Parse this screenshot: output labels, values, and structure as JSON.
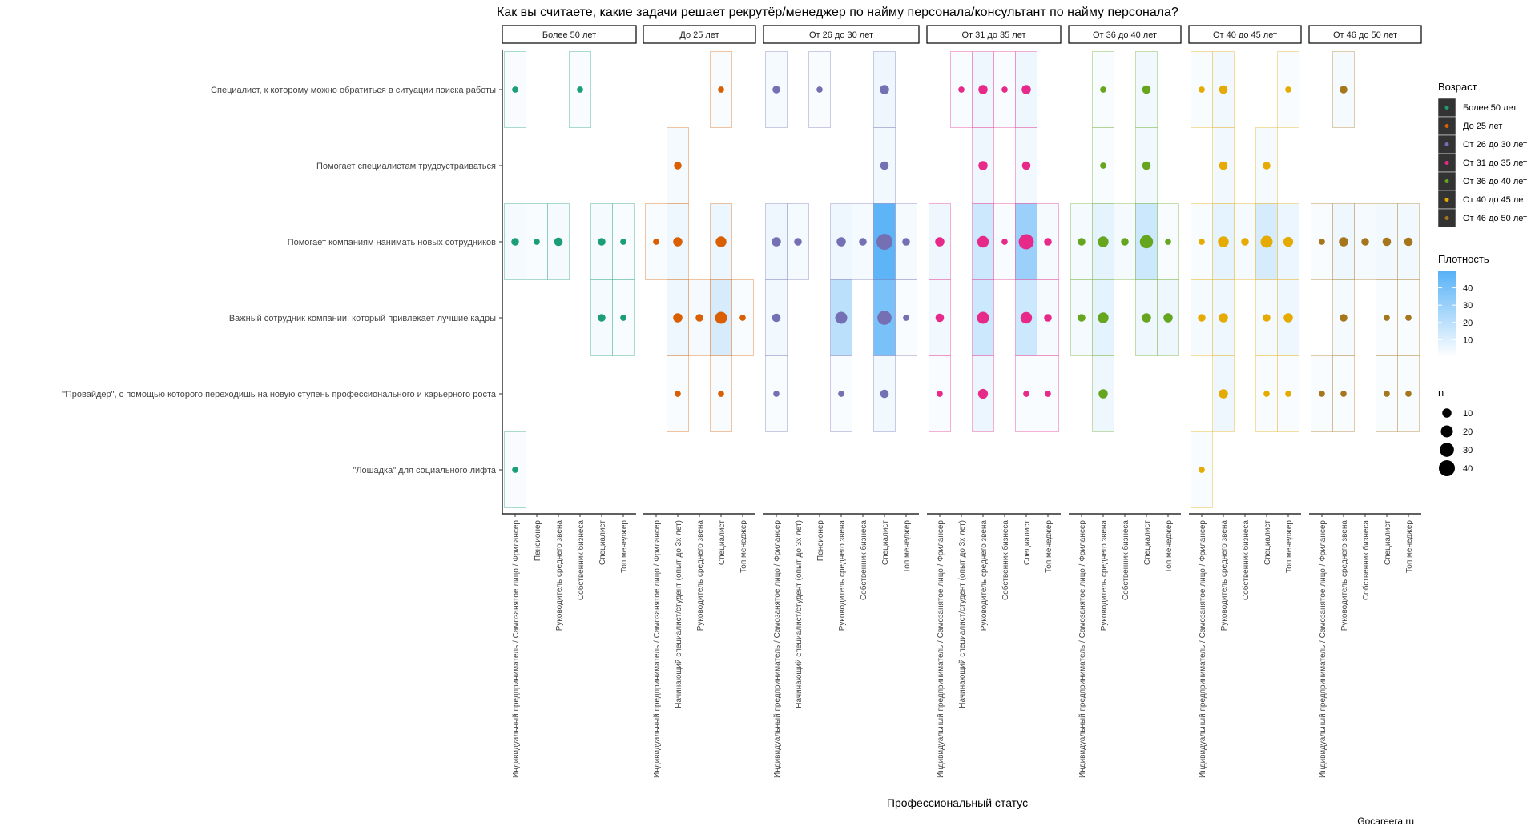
{
  "chart_data": {
    "type": "scatter",
    "title": "Как вы считаете, какие задачи решает рекрутёр/менеджер по найму персонала/консультант по найму персонала?",
    "xlabel": "Профессиональный статус",
    "ylabel": "",
    "caption": "Gocareera.ru",
    "rows": [
      "Специалист, к которому можно обратиться в ситуации поиска работы",
      "Помогает специалистам трудоустраиваться",
      "Помогает компаниям нанимать новых сотрудников",
      "Важный сотрудник компании, который привлекает лучшие кадры",
      "\"Провайдер\", с помощью которого переходишь на новую ступень профессионального и карьерного роста",
      "\"Лошадка\" для социального лифта"
    ],
    "legend_color": {
      "title": "Возраст",
      "items": [
        {
          "label": "Более 50 лет",
          "color": "#1b9e77"
        },
        {
          "label": "До 25 лет",
          "color": "#d95f02"
        },
        {
          "label": "От 26 до 30 лет",
          "color": "#7570b3"
        },
        {
          "label": "От 31 до 35 лет",
          "color": "#e7298a"
        },
        {
          "label": "От 36 до 40 лет",
          "color": "#66a61e"
        },
        {
          "label": "От 40 до 45 лет",
          "color": "#e6ab02"
        },
        {
          "label": "От 46 до 50 лет",
          "color": "#a6761d"
        }
      ]
    },
    "legend_fill": {
      "title": "Плотность",
      "ticks": [
        10,
        20,
        30,
        40
      ],
      "range": [
        0,
        50
      ],
      "low": "#ffffff",
      "high": "#56b1f7"
    },
    "legend_size": {
      "title": "n",
      "ticks": [
        10,
        20,
        30,
        40
      ]
    },
    "panels": [
      {
        "name": "Более 50 лет",
        "color": "#1b9e77",
        "categories": [
          "Индивидуальный предприниматель / Самозанятое лицо / Фрилансер",
          "Пенсионер",
          "Руководитель среднего звена",
          "Собственник бизнеса",
          "Специалист",
          "Топ менеджер"
        ],
        "points": [
          {
            "x": 0,
            "y": 0,
            "n": 3,
            "d": 2
          },
          {
            "x": 3,
            "y": 0,
            "n": 3,
            "d": 2
          },
          {
            "x": 0,
            "y": 2,
            "n": 6,
            "d": 3
          },
          {
            "x": 1,
            "y": 2,
            "n": 3,
            "d": 2
          },
          {
            "x": 2,
            "y": 2,
            "n": 8,
            "d": 3
          },
          {
            "x": 4,
            "y": 2,
            "n": 6,
            "d": 3
          },
          {
            "x": 5,
            "y": 2,
            "n": 3,
            "d": 2
          },
          {
            "x": 4,
            "y": 3,
            "n": 6,
            "d": 3
          },
          {
            "x": 5,
            "y": 3,
            "n": 3,
            "d": 2
          },
          {
            "x": 0,
            "y": 5,
            "n": 3,
            "d": 2
          }
        ]
      },
      {
        "name": "До 25 лет",
        "color": "#d95f02",
        "categories": [
          "Индивидуальный предприниматель / Самозанятое лицо / Фрилансер",
          "Начинающий специалист/студент (опыт до 3х лет)",
          "Руководитель среднего звена",
          "Специалист",
          "Топ менеджер"
        ],
        "points": [
          {
            "x": 3,
            "y": 0,
            "n": 3,
            "d": 2
          },
          {
            "x": 1,
            "y": 1,
            "n": 6,
            "d": 3
          },
          {
            "x": 0,
            "y": 2,
            "n": 3,
            "d": 2
          },
          {
            "x": 1,
            "y": 2,
            "n": 10,
            "d": 5
          },
          {
            "x": 3,
            "y": 2,
            "n": 15,
            "d": 6
          },
          {
            "x": 1,
            "y": 3,
            "n": 10,
            "d": 5
          },
          {
            "x": 2,
            "y": 3,
            "n": 6,
            "d": 3
          },
          {
            "x": 3,
            "y": 3,
            "n": 20,
            "d": 12
          },
          {
            "x": 4,
            "y": 3,
            "n": 3,
            "d": 2
          },
          {
            "x": 1,
            "y": 4,
            "n": 3,
            "d": 2
          },
          {
            "x": 3,
            "y": 4,
            "n": 3,
            "d": 2
          }
        ]
      },
      {
        "name": "От 26 до 30 лет",
        "color": "#7570b3",
        "categories": [
          "Индивидуальный предприниматель / Самозанятое лицо / Фрилансер",
          "Начинающий специалист/студент (опыт до 3х лет)",
          "Пенсионер",
          "Руководитель среднего звена",
          "Собственник бизнеса",
          "Специалист",
          "Топ менеджер"
        ],
        "points": [
          {
            "x": 0,
            "y": 0,
            "n": 6,
            "d": 3
          },
          {
            "x": 2,
            "y": 0,
            "n": 3,
            "d": 2
          },
          {
            "x": 5,
            "y": 0,
            "n": 10,
            "d": 5
          },
          {
            "x": 5,
            "y": 1,
            "n": 8,
            "d": 4
          },
          {
            "x": 0,
            "y": 2,
            "n": 10,
            "d": 5
          },
          {
            "x": 1,
            "y": 2,
            "n": 6,
            "d": 3
          },
          {
            "x": 3,
            "y": 2,
            "n": 10,
            "d": 5
          },
          {
            "x": 4,
            "y": 2,
            "n": 6,
            "d": 3
          },
          {
            "x": 5,
            "y": 2,
            "n": 40,
            "d": 48
          },
          {
            "x": 6,
            "y": 2,
            "n": 6,
            "d": 3
          },
          {
            "x": 0,
            "y": 3,
            "n": 8,
            "d": 4
          },
          {
            "x": 3,
            "y": 3,
            "n": 20,
            "d": 20
          },
          {
            "x": 5,
            "y": 3,
            "n": 30,
            "d": 40
          },
          {
            "x": 6,
            "y": 3,
            "n": 3,
            "d": 2
          },
          {
            "x": 0,
            "y": 4,
            "n": 3,
            "d": 2
          },
          {
            "x": 3,
            "y": 4,
            "n": 3,
            "d": 2
          },
          {
            "x": 5,
            "y": 4,
            "n": 8,
            "d": 4
          }
        ]
      },
      {
        "name": "От 31 до 35 лет",
        "color": "#e7298a",
        "categories": [
          "Индивидуальный предприниматель / Самозанятое лицо / Фрилансер",
          "Начинающий специалист/студент (опыт до 3х лет)",
          "Руководитель среднего звена",
          "Собственник бизнеса",
          "Специалист",
          "Топ менеджер"
        ],
        "points": [
          {
            "x": 1,
            "y": 0,
            "n": 3,
            "d": 2
          },
          {
            "x": 2,
            "y": 0,
            "n": 10,
            "d": 5
          },
          {
            "x": 3,
            "y": 0,
            "n": 3,
            "d": 2
          },
          {
            "x": 4,
            "y": 0,
            "n": 10,
            "d": 5
          },
          {
            "x": 2,
            "y": 1,
            "n": 10,
            "d": 5
          },
          {
            "x": 4,
            "y": 1,
            "n": 8,
            "d": 4
          },
          {
            "x": 0,
            "y": 2,
            "n": 10,
            "d": 5
          },
          {
            "x": 2,
            "y": 2,
            "n": 18,
            "d": 15
          },
          {
            "x": 3,
            "y": 2,
            "n": 3,
            "d": 2
          },
          {
            "x": 4,
            "y": 2,
            "n": 35,
            "d": 30
          },
          {
            "x": 5,
            "y": 2,
            "n": 6,
            "d": 3
          },
          {
            "x": 0,
            "y": 3,
            "n": 8,
            "d": 4
          },
          {
            "x": 2,
            "y": 3,
            "n": 20,
            "d": 15
          },
          {
            "x": 4,
            "y": 3,
            "n": 18,
            "d": 15
          },
          {
            "x": 5,
            "y": 3,
            "n": 6,
            "d": 3
          },
          {
            "x": 0,
            "y": 4,
            "n": 3,
            "d": 2
          },
          {
            "x": 2,
            "y": 4,
            "n": 12,
            "d": 6
          },
          {
            "x": 4,
            "y": 4,
            "n": 3,
            "d": 2
          },
          {
            "x": 5,
            "y": 4,
            "n": 3,
            "d": 2
          }
        ]
      },
      {
        "name": "От 36 до 40 лет",
        "color": "#66a61e",
        "categories": [
          "Индивидуальный предприниматель / Самозанятое лицо / Фрилансер",
          "Руководитель среднего звена",
          "Собственник бизнеса",
          "Специалист",
          "Топ менеджер"
        ],
        "points": [
          {
            "x": 1,
            "y": 0,
            "n": 3,
            "d": 2
          },
          {
            "x": 3,
            "y": 0,
            "n": 8,
            "d": 4
          },
          {
            "x": 1,
            "y": 1,
            "n": 3,
            "d": 2
          },
          {
            "x": 3,
            "y": 1,
            "n": 8,
            "d": 4
          },
          {
            "x": 0,
            "y": 2,
            "n": 6,
            "d": 3
          },
          {
            "x": 1,
            "y": 2,
            "n": 15,
            "d": 8
          },
          {
            "x": 2,
            "y": 2,
            "n": 6,
            "d": 3
          },
          {
            "x": 3,
            "y": 2,
            "n": 25,
            "d": 15
          },
          {
            "x": 4,
            "y": 2,
            "n": 3,
            "d": 2
          },
          {
            "x": 0,
            "y": 3,
            "n": 6,
            "d": 3
          },
          {
            "x": 1,
            "y": 3,
            "n": 15,
            "d": 8
          },
          {
            "x": 3,
            "y": 3,
            "n": 10,
            "d": 5
          },
          {
            "x": 4,
            "y": 3,
            "n": 10,
            "d": 5
          },
          {
            "x": 1,
            "y": 4,
            "n": 10,
            "d": 5
          }
        ]
      },
      {
        "name": "От 40 до 45 лет",
        "color": "#e6ab02",
        "categories": [
          "Индивидуальный предприниматель / Самозанятое лицо / Фрилансер",
          "Руководитель среднего звена",
          "Собственник бизнеса",
          "Специалист",
          "Топ менеджер"
        ],
        "points": [
          {
            "x": 0,
            "y": 0,
            "n": 3,
            "d": 2
          },
          {
            "x": 1,
            "y": 0,
            "n": 8,
            "d": 4
          },
          {
            "x": 4,
            "y": 0,
            "n": 3,
            "d": 2
          },
          {
            "x": 1,
            "y": 1,
            "n": 8,
            "d": 4
          },
          {
            "x": 3,
            "y": 1,
            "n": 6,
            "d": 3
          },
          {
            "x": 0,
            "y": 2,
            "n": 3,
            "d": 2
          },
          {
            "x": 1,
            "y": 2,
            "n": 15,
            "d": 8
          },
          {
            "x": 2,
            "y": 2,
            "n": 6,
            "d": 3
          },
          {
            "x": 3,
            "y": 2,
            "n": 20,
            "d": 12
          },
          {
            "x": 4,
            "y": 2,
            "n": 12,
            "d": 6
          },
          {
            "x": 0,
            "y": 3,
            "n": 6,
            "d": 3
          },
          {
            "x": 1,
            "y": 3,
            "n": 10,
            "d": 5
          },
          {
            "x": 3,
            "y": 3,
            "n": 6,
            "d": 3
          },
          {
            "x": 4,
            "y": 3,
            "n": 10,
            "d": 5
          },
          {
            "x": 1,
            "y": 4,
            "n": 10,
            "d": 5
          },
          {
            "x": 3,
            "y": 4,
            "n": 3,
            "d": 2
          },
          {
            "x": 4,
            "y": 4,
            "n": 3,
            "d": 2
          },
          {
            "x": 0,
            "y": 5,
            "n": 3,
            "d": 2
          }
        ]
      },
      {
        "name": "От 46 до 50 лет",
        "color": "#a6761d",
        "categories": [
          "Индивидуальный предприниматель / Самозанятое лицо / Фрилансер",
          "Руководитель среднего звена",
          "Собственник бизнеса",
          "Специалист",
          "Топ менеджер"
        ],
        "points": [
          {
            "x": 1,
            "y": 0,
            "n": 6,
            "d": 3
          },
          {
            "x": 0,
            "y": 2,
            "n": 3,
            "d": 2
          },
          {
            "x": 1,
            "y": 2,
            "n": 10,
            "d": 5
          },
          {
            "x": 2,
            "y": 2,
            "n": 6,
            "d": 3
          },
          {
            "x": 3,
            "y": 2,
            "n": 8,
            "d": 4
          },
          {
            "x": 4,
            "y": 2,
            "n": 8,
            "d": 4
          },
          {
            "x": 1,
            "y": 3,
            "n": 6,
            "d": 3
          },
          {
            "x": 3,
            "y": 3,
            "n": 3,
            "d": 2
          },
          {
            "x": 4,
            "y": 3,
            "n": 3,
            "d": 2
          },
          {
            "x": 0,
            "y": 4,
            "n": 3,
            "d": 2
          },
          {
            "x": 1,
            "y": 4,
            "n": 3,
            "d": 2
          },
          {
            "x": 3,
            "y": 4,
            "n": 3,
            "d": 2
          },
          {
            "x": 4,
            "y": 4,
            "n": 3,
            "d": 2
          }
        ]
      }
    ]
  }
}
